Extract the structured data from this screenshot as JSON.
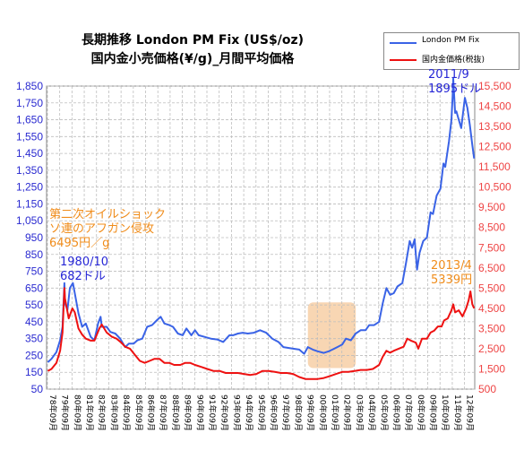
{
  "chart_data": {
    "type": "line",
    "title_line1": "長期推移 London PM Fix (US$/oz)",
    "title_line2": "国内金小売価格(¥/g)_月間平均価格",
    "legend": [
      "London PM Fix",
      "国内金価格(税抜)"
    ],
    "colors": {
      "usd": "#3a63e6",
      "jpy": "#ee1111",
      "left_axis": "#2a2ad0",
      "right_axis": "#ee4444",
      "grid": "#bdbdbd",
      "highlight": "#f5c89a",
      "note_orange": "#f08c1a",
      "note_blue": "#2626d6"
    },
    "left_axis": {
      "min": 50,
      "max": 1850,
      "ticks": [
        "1,850",
        "1,750",
        "1,650",
        "1,550",
        "1,450",
        "1,350",
        "1,250",
        "1,150",
        "1,050",
        "950",
        "850",
        "750",
        "650",
        "550",
        "450",
        "350",
        "250",
        "150",
        "50"
      ]
    },
    "right_axis": {
      "min": 500,
      "max": 15500,
      "ticks": [
        "15,500",
        "14,500",
        "13,500",
        "12,500",
        "11,500",
        "10,500",
        "9,500",
        "8,500",
        "7,500",
        "6,500",
        "5,500",
        "4,500",
        "3,500",
        "2,500",
        "1,500",
        "500"
      ]
    },
    "x_tick_labels": [
      "78年09月",
      "79年09月",
      "80年09月",
      "81年09月",
      "82年09月",
      "83年09月",
      "84年09月",
      "85年09月",
      "86年09月",
      "87年09月",
      "88年09月",
      "89年09月",
      "90年09月",
      "91年09月",
      "92年09月",
      "93年09月",
      "94年09月",
      "95年09月",
      "96年09月",
      "97年09月",
      "98年09月",
      "99年09月",
      "00年09月",
      "01年09月",
      "02年09月",
      "03年09月",
      "04年09月",
      "05年09月",
      "06年09月",
      "07年09月",
      "08年09月",
      "09年09月",
      "10年09月",
      "11年09月",
      "12年09月"
    ],
    "series": [
      {
        "name": "London PM Fix",
        "axis": "left",
        "points": [
          [
            1978.7,
            210
          ],
          [
            1979.0,
            230
          ],
          [
            1979.4,
            270
          ],
          [
            1979.7,
            340
          ],
          [
            1979.9,
            420
          ],
          [
            1980.05,
            680
          ],
          [
            1980.1,
            560
          ],
          [
            1980.3,
            520
          ],
          [
            1980.5,
            650
          ],
          [
            1980.75,
            680
          ],
          [
            1980.9,
            620
          ],
          [
            1981.2,
            500
          ],
          [
            1981.5,
            420
          ],
          [
            1981.8,
            440
          ],
          [
            1982.2,
            360
          ],
          [
            1982.5,
            340
          ],
          [
            1982.8,
            440
          ],
          [
            1983.0,
            480
          ],
          [
            1983.1,
            420
          ],
          [
            1983.5,
            420
          ],
          [
            1983.8,
            390
          ],
          [
            1984.2,
            380
          ],
          [
            1984.6,
            350
          ],
          [
            1985.0,
            300
          ],
          [
            1985.3,
            320
          ],
          [
            1985.7,
            320
          ],
          [
            1986.0,
            340
          ],
          [
            1986.4,
            350
          ],
          [
            1986.8,
            420
          ],
          [
            1987.2,
            430
          ],
          [
            1987.6,
            460
          ],
          [
            1987.9,
            480
          ],
          [
            1988.2,
            440
          ],
          [
            1988.6,
            430
          ],
          [
            1988.9,
            420
          ],
          [
            1989.3,
            380
          ],
          [
            1989.7,
            370
          ],
          [
            1990.0,
            410
          ],
          [
            1990.4,
            370
          ],
          [
            1990.7,
            400
          ],
          [
            1991.0,
            370
          ],
          [
            1991.5,
            360
          ],
          [
            1992.0,
            350
          ],
          [
            1992.5,
            345
          ],
          [
            1993.0,
            330
          ],
          [
            1993.5,
            370
          ],
          [
            1993.8,
            370
          ],
          [
            1994.2,
            380
          ],
          [
            1994.6,
            385
          ],
          [
            1995.0,
            380
          ],
          [
            1995.5,
            385
          ],
          [
            1996.0,
            400
          ],
          [
            1996.5,
            385
          ],
          [
            1997.0,
            350
          ],
          [
            1997.5,
            330
          ],
          [
            1997.9,
            300
          ],
          [
            1998.3,
            295
          ],
          [
            1998.7,
            290
          ],
          [
            1999.2,
            285
          ],
          [
            1999.6,
            260
          ],
          [
            1999.9,
            300
          ],
          [
            2000.3,
            285
          ],
          [
            2000.7,
            275
          ],
          [
            2001.2,
            265
          ],
          [
            2001.6,
            275
          ],
          [
            2001.9,
            285
          ],
          [
            2002.3,
            300
          ],
          [
            2002.7,
            315
          ],
          [
            2003.0,
            350
          ],
          [
            2003.4,
            340
          ],
          [
            2003.8,
            380
          ],
          [
            2004.2,
            400
          ],
          [
            2004.6,
            400
          ],
          [
            2004.9,
            430
          ],
          [
            2005.3,
            430
          ],
          [
            2005.7,
            450
          ],
          [
            2006.0,
            560
          ],
          [
            2006.3,
            650
          ],
          [
            2006.6,
            610
          ],
          [
            2006.9,
            620
          ],
          [
            2007.2,
            660
          ],
          [
            2007.6,
            680
          ],
          [
            2007.9,
            800
          ],
          [
            2008.2,
            930
          ],
          [
            2008.4,
            890
          ],
          [
            2008.6,
            940
          ],
          [
            2008.8,
            760
          ],
          [
            2009.0,
            860
          ],
          [
            2009.3,
            930
          ],
          [
            2009.6,
            950
          ],
          [
            2009.9,
            1100
          ],
          [
            2010.1,
            1090
          ],
          [
            2010.4,
            1200
          ],
          [
            2010.7,
            1240
          ],
          [
            2010.95,
            1390
          ],
          [
            2011.1,
            1370
          ],
          [
            2011.4,
            1520
          ],
          [
            2011.6,
            1650
          ],
          [
            2011.7,
            1790
          ],
          [
            2011.75,
            1895
          ],
          [
            2011.9,
            1690
          ],
          [
            2012.0,
            1700
          ],
          [
            2012.2,
            1650
          ],
          [
            2012.4,
            1600
          ],
          [
            2012.7,
            1780
          ],
          [
            2012.9,
            1720
          ],
          [
            2013.1,
            1620
          ],
          [
            2013.3,
            1500
          ],
          [
            2013.45,
            1420
          ]
        ]
      },
      {
        "name": "国内金価格(税抜)",
        "axis": "right",
        "points": [
          [
            1978.7,
            1400
          ],
          [
            1979.0,
            1500
          ],
          [
            1979.4,
            1800
          ],
          [
            1979.7,
            2400
          ],
          [
            1979.9,
            3300
          ],
          [
            1980.05,
            5500
          ],
          [
            1980.1,
            5000
          ],
          [
            1980.4,
            4000
          ],
          [
            1980.7,
            4500
          ],
          [
            1980.9,
            4300
          ],
          [
            1981.2,
            3500
          ],
          [
            1981.5,
            3200
          ],
          [
            1981.8,
            3000
          ],
          [
            1982.2,
            2900
          ],
          [
            1982.5,
            2900
          ],
          [
            1982.9,
            3500
          ],
          [
            1983.1,
            3700
          ],
          [
            1983.5,
            3300
          ],
          [
            1983.9,
            3100
          ],
          [
            1984.3,
            3000
          ],
          [
            1984.7,
            2800
          ],
          [
            1985.0,
            2600
          ],
          [
            1985.4,
            2500
          ],
          [
            1985.8,
            2200
          ],
          [
            1986.2,
            1900
          ],
          [
            1986.6,
            1800
          ],
          [
            1987.0,
            1900
          ],
          [
            1987.4,
            2000
          ],
          [
            1987.8,
            2000
          ],
          [
            1988.2,
            1800
          ],
          [
            1988.6,
            1800
          ],
          [
            1989.0,
            1700
          ],
          [
            1989.5,
            1700
          ],
          [
            1989.9,
            1800
          ],
          [
            1990.3,
            1800
          ],
          [
            1990.7,
            1700
          ],
          [
            1991.2,
            1600
          ],
          [
            1991.7,
            1500
          ],
          [
            1992.2,
            1400
          ],
          [
            1992.7,
            1400
          ],
          [
            1993.2,
            1300
          ],
          [
            1993.7,
            1300
          ],
          [
            1994.2,
            1300
          ],
          [
            1994.7,
            1250
          ],
          [
            1995.2,
            1200
          ],
          [
            1995.7,
            1250
          ],
          [
            1996.2,
            1400
          ],
          [
            1996.7,
            1400
          ],
          [
            1997.2,
            1350
          ],
          [
            1997.7,
            1300
          ],
          [
            1998.2,
            1300
          ],
          [
            1998.7,
            1250
          ],
          [
            1999.2,
            1100
          ],
          [
            1999.7,
            1000
          ],
          [
            2000.2,
            1000
          ],
          [
            2000.7,
            1000
          ],
          [
            2001.2,
            1050
          ],
          [
            2001.7,
            1150
          ],
          [
            2002.2,
            1250
          ],
          [
            2002.7,
            1350
          ],
          [
            2003.2,
            1350
          ],
          [
            2003.7,
            1400
          ],
          [
            2004.2,
            1450
          ],
          [
            2004.7,
            1450
          ],
          [
            2005.2,
            1500
          ],
          [
            2005.7,
            1700
          ],
          [
            2006.0,
            2100
          ],
          [
            2006.3,
            2400
          ],
          [
            2006.6,
            2300
          ],
          [
            2006.9,
            2400
          ],
          [
            2007.3,
            2500
          ],
          [
            2007.7,
            2600
          ],
          [
            2008.0,
            3000
          ],
          [
            2008.3,
            2900
          ],
          [
            2008.7,
            2800
          ],
          [
            2008.9,
            2500
          ],
          [
            2009.2,
            3000
          ],
          [
            2009.6,
            3000
          ],
          [
            2009.9,
            3300
          ],
          [
            2010.2,
            3400
          ],
          [
            2010.5,
            3600
          ],
          [
            2010.8,
            3600
          ],
          [
            2011.0,
            3900
          ],
          [
            2011.3,
            4000
          ],
          [
            2011.6,
            4400
          ],
          [
            2011.75,
            4700
          ],
          [
            2011.9,
            4300
          ],
          [
            2012.2,
            4400
          ],
          [
            2012.5,
            4100
          ],
          [
            2012.8,
            4500
          ],
          [
            2013.0,
            4900
          ],
          [
            2013.15,
            5339
          ],
          [
            2013.3,
            4700
          ],
          [
            2013.45,
            4500
          ]
        ]
      }
    ],
    "highlight_note": "00年09月–03年09月"
  },
  "annotations": {
    "oil_shock_line1": "第二次オイルショック",
    "oil_shock_line2": "ソ連のアフガン侵攻",
    "oil_shock_line3": "6495円／g",
    "peak_1980_line1": "1980/10",
    "peak_1980_line2": "682ドル",
    "peak_2011_line1": "2011/9",
    "peak_2011_line2": "1895ドル",
    "price_2013_line1": "2013/4",
    "price_2013_line2": "5339円"
  }
}
